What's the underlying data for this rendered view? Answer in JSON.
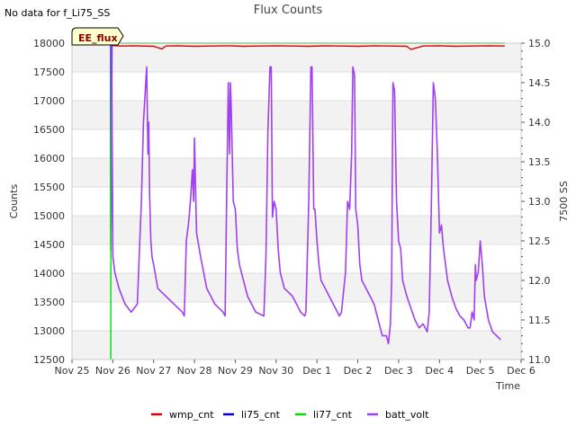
{
  "chart_data": {
    "type": "line",
    "title": "Flux Counts",
    "no_data_note": "No data for f_Li75_SS",
    "badge": "EE_flux",
    "xlabel": "Time",
    "ylabel": "Counts",
    "y2label": "7500 SS",
    "ylim": [
      12500,
      18000
    ],
    "y2lim": [
      11.0,
      15.0
    ],
    "xlim": [
      0,
      11
    ],
    "x_tick_labels": [
      "Nov 25",
      "Nov 26",
      "Nov 27",
      "Nov 28",
      "Nov 29",
      "Nov 30",
      "Dec 1",
      "Dec 2",
      "Dec 3",
      "Dec 4",
      "Dec 5",
      "Dec 6"
    ],
    "y_ticks": [
      12500,
      13000,
      13500,
      14000,
      14500,
      15000,
      15500,
      16000,
      16500,
      17000,
      17500,
      18000
    ],
    "y2_ticks": [
      "11.0",
      "11.5",
      "12.0",
      "12.5",
      "13.0",
      "13.5",
      "14.0",
      "14.5",
      "15.0"
    ],
    "grid": true,
    "band_colors": [
      "#f2f2f2",
      "#ffffff"
    ],
    "legend_position": "bottom",
    "series": [
      {
        "name": "wmp_cnt",
        "color": "#dd0000",
        "axis": "left",
        "x": [
          0.95,
          1.2,
          1.5,
          2.0,
          2.2,
          2.3,
          2.6,
          3.0,
          3.4,
          3.8,
          4.2,
          4.6,
          5.0,
          5.4,
          5.8,
          6.2,
          6.6,
          7.0,
          7.4,
          7.8,
          8.2,
          8.3,
          8.6,
          9.0,
          9.4,
          9.8,
          10.2,
          10.6
        ],
        "values": [
          17960,
          17950,
          17955,
          17945,
          17900,
          17950,
          17955,
          17945,
          17950,
          17955,
          17945,
          17950,
          17955,
          17950,
          17945,
          17955,
          17950,
          17945,
          17955,
          17950,
          17945,
          17890,
          17950,
          17955,
          17945,
          17950,
          17955,
          17950
        ]
      },
      {
        "name": "li75_cnt",
        "color": "#0000cc",
        "axis": "left",
        "x": [
          0.95,
          0.95,
          0.97,
          0.98,
          1.0
        ],
        "values": [
          17990,
          14400,
          15650,
          17990,
          17990
        ]
      },
      {
        "name": "li77_cnt",
        "color": "#00dd00",
        "axis": "left",
        "x": [
          0.95,
          0.95,
          0.96,
          0.97,
          1.0,
          1.5,
          2.5,
          3.5,
          4.5,
          5.5,
          6.5,
          7.5,
          8.5,
          9.5,
          10.6
        ],
        "values": [
          12500,
          13750,
          15600,
          18000,
          18000,
          18000,
          18000,
          18000,
          18000,
          18000,
          18000,
          18000,
          18000,
          18000,
          18000
        ]
      },
      {
        "name": "batt_volt",
        "color": "#a040f0",
        "axis": "right",
        "x": [
          0.97,
          1.0,
          1.05,
          1.15,
          1.3,
          1.45,
          1.6,
          1.7,
          1.75,
          1.83,
          1.86,
          1.88,
          1.9,
          1.93,
          1.96,
          2.0,
          2.1,
          2.3,
          2.5,
          2.7,
          2.75,
          2.8,
          2.85,
          2.9,
          2.95,
          2.98,
          3.0,
          3.05,
          3.15,
          3.3,
          3.5,
          3.7,
          3.75,
          3.8,
          3.83,
          3.86,
          3.88,
          3.9,
          3.95,
          4.0,
          4.05,
          4.1,
          4.2,
          4.3,
          4.4,
          4.5,
          4.7,
          4.75,
          4.8,
          4.85,
          4.88,
          4.91,
          4.95,
          5.0,
          5.05,
          5.1,
          5.2,
          5.4,
          5.6,
          5.7,
          5.73,
          5.75,
          5.8,
          5.85,
          5.88,
          5.92,
          5.95,
          6.0,
          6.05,
          6.1,
          6.2,
          6.3,
          6.4,
          6.5,
          6.55,
          6.6,
          6.7,
          6.75,
          6.8,
          6.85,
          6.88,
          6.92,
          6.95,
          7.0,
          7.05,
          7.1,
          7.2,
          7.3,
          7.4,
          7.5,
          7.6,
          7.7,
          7.75,
          7.8,
          7.83,
          7.86,
          7.9,
          7.95,
          8.0,
          8.05,
          8.1,
          8.2,
          8.3,
          8.4,
          8.5,
          8.6,
          8.65,
          8.7,
          8.75,
          8.8,
          8.85,
          8.9,
          8.95,
          9.0,
          9.05,
          9.1,
          9.2,
          9.3,
          9.4,
          9.5,
          9.6,
          9.65,
          9.7,
          9.75,
          9.8,
          9.85,
          9.88,
          9.9,
          9.95,
          10.0,
          10.05,
          10.1,
          10.2,
          10.3,
          10.4,
          10.5
        ],
        "values": [
          15.0,
          12.3,
          12.1,
          11.9,
          11.7,
          11.6,
          11.7,
          13.0,
          14.0,
          14.7,
          13.6,
          14.0,
          13.1,
          12.5,
          12.3,
          12.2,
          11.9,
          11.8,
          11.7,
          11.6,
          11.55,
          12.5,
          12.7,
          13.0,
          13.4,
          13.0,
          13.8,
          12.6,
          12.3,
          11.9,
          11.7,
          11.6,
          11.55,
          13.5,
          14.5,
          13.6,
          14.5,
          14.2,
          13.0,
          12.9,
          12.4,
          12.2,
          12.0,
          11.8,
          11.7,
          11.6,
          11.55,
          12.3,
          13.9,
          14.7,
          14.7,
          12.8,
          13.0,
          12.9,
          12.4,
          12.1,
          11.9,
          11.8,
          11.6,
          11.55,
          11.6,
          12.0,
          13.0,
          14.7,
          14.7,
          12.9,
          12.9,
          12.5,
          12.2,
          12.0,
          11.9,
          11.8,
          11.7,
          11.6,
          11.55,
          11.6,
          12.1,
          13.0,
          12.9,
          13.6,
          14.7,
          14.6,
          12.9,
          12.7,
          12.2,
          12.0,
          11.9,
          11.8,
          11.7,
          11.5,
          11.3,
          11.3,
          11.2,
          11.45,
          12.0,
          14.5,
          14.4,
          13.0,
          12.5,
          12.4,
          12.0,
          11.8,
          11.65,
          11.5,
          11.4,
          11.45,
          11.4,
          11.35,
          11.6,
          12.9,
          14.5,
          14.3,
          13.6,
          12.6,
          12.7,
          12.4,
          12.0,
          11.8,
          11.65,
          11.55,
          11.5,
          11.45,
          11.4,
          11.4,
          11.6,
          11.5,
          12.2,
          12.0,
          12.1,
          12.5,
          12.2,
          11.8,
          11.5,
          11.35,
          11.3,
          11.25
        ]
      }
    ]
  }
}
